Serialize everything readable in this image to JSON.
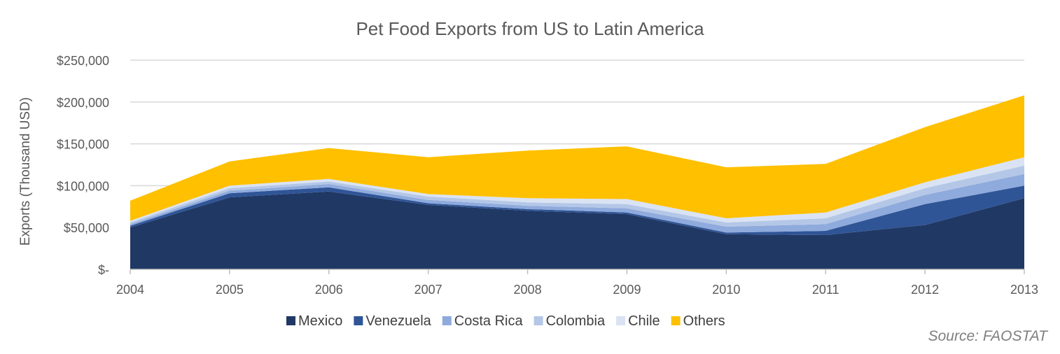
{
  "source_note": "Source: FAOSTAT",
  "colors": {
    "Mexico": "#203864",
    "Venezuela": "#2f5597",
    "Costa Rica": "#8faadc",
    "Colombia": "#b4c7e7",
    "Chile": "#dae3f3",
    "Others": "#ffc000",
    "gridline": "#d9d9d9",
    "text": "#595959"
  },
  "chart_data": {
    "type": "area",
    "stacked": true,
    "title": "Pet Food Exports from US to Latin America",
    "xlabel": "",
    "ylabel": "Exports (Thousand USD)",
    "ylim": [
      0,
      250000
    ],
    "ytick_values": [
      0,
      50000,
      100000,
      150000,
      200000,
      250000
    ],
    "ytick_labels": [
      "$-",
      "$50,000",
      "$100,000",
      "$150,000",
      "$200,000",
      "$250,000"
    ],
    "grid": true,
    "legend_position": "bottom",
    "x": [
      "2004",
      "2005",
      "2006",
      "2007",
      "2008",
      "2009",
      "2010",
      "2011",
      "2012",
      "2013"
    ],
    "series": [
      {
        "name": "Mexico",
        "values": [
          50000,
          86000,
          93000,
          77000,
          70000,
          66000,
          42000,
          41000,
          53000,
          85000
        ]
      },
      {
        "name": "Venezuela",
        "values": [
          2000,
          5000,
          5000,
          2000,
          2000,
          2000,
          2000,
          5000,
          25000,
          15000
        ]
      },
      {
        "name": "Costa Rica",
        "values": [
          2000,
          3000,
          4000,
          4000,
          4000,
          5000,
          7000,
          8000,
          11000,
          14000
        ]
      },
      {
        "name": "Colombia",
        "values": [
          2000,
          3000,
          3000,
          4000,
          4000,
          5000,
          5000,
          7000,
          8000,
          10000
        ]
      },
      {
        "name": "Chile",
        "values": [
          2000,
          3000,
          3000,
          3000,
          5000,
          6000,
          5000,
          7000,
          7000,
          10000
        ]
      },
      {
        "name": "Others",
        "values": [
          24000,
          29000,
          37000,
          44000,
          57000,
          63000,
          61000,
          58000,
          66000,
          74000
        ]
      }
    ]
  }
}
